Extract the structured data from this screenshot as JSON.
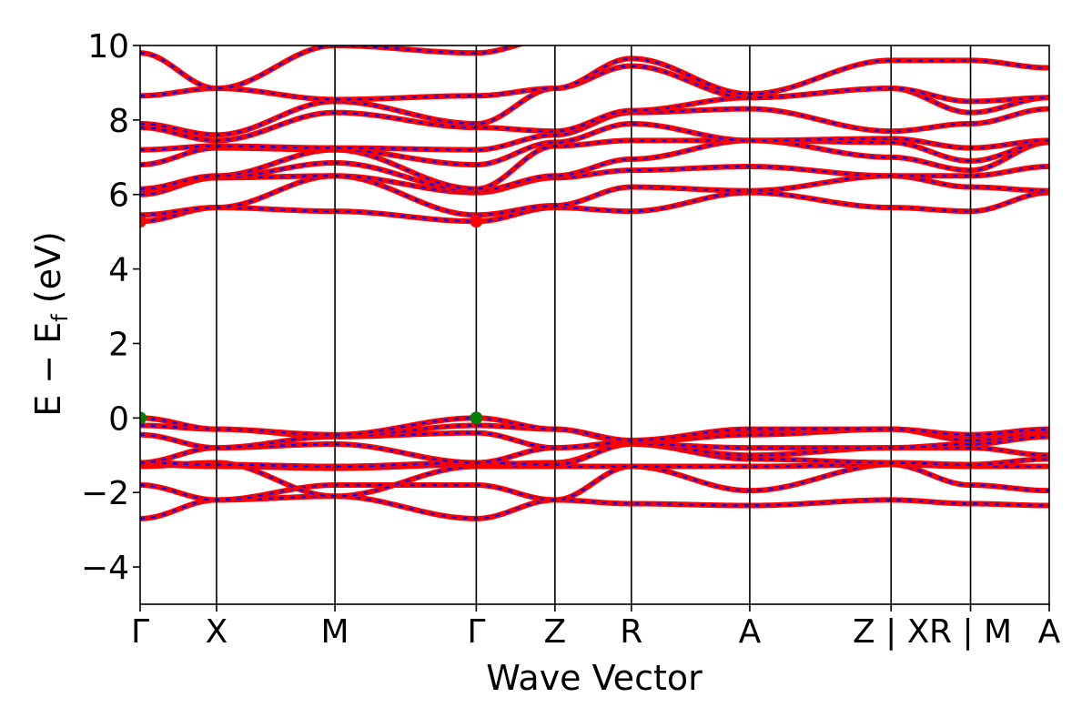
{
  "chart_data": {
    "type": "line",
    "xlabel": "Wave Vector",
    "ylabel": "E − E",
    "ylabel_sub": "f",
    "ylabel_unit": " (eV)",
    "ylim": [
      -5,
      10
    ],
    "yticks": [
      -4,
      -2,
      0,
      2,
      4,
      6,
      8,
      10
    ],
    "ytick_labels": [
      "−4",
      "−2",
      "0",
      "2",
      "4",
      "6",
      "8",
      "10"
    ],
    "xlim": [
      0,
      11.9
    ],
    "kpoints": [
      {
        "label": "Γ",
        "x": 0.0
      },
      {
        "label": "X",
        "x": 1.0
      },
      {
        "label": "M",
        "x": 2.55
      },
      {
        "label": "Γ",
        "x": 4.4
      },
      {
        "label": "Z",
        "x": 5.43
      },
      {
        "label": "R",
        "x": 6.43
      },
      {
        "label": "A",
        "x": 7.98
      },
      {
        "label": "Z | X",
        "x": 9.83
      },
      {
        "label": "R | M",
        "x": 10.87
      },
      {
        "label": "A",
        "x": 11.9
      }
    ],
    "grid": false,
    "colors": {
      "band_main": "#ff0000",
      "band_dash": "#0000ff",
      "vbm_marker": "#008000",
      "cbm_marker": "#ff0000"
    },
    "markers": [
      {
        "name": "VBM",
        "x": 0.0,
        "y": 0.0,
        "color": "#008000"
      },
      {
        "name": "VBM",
        "x": 4.4,
        "y": 0.0,
        "color": "#008000"
      },
      {
        "name": "CBM",
        "x": 0.0,
        "y": 5.28,
        "color": "#ff0000"
      },
      {
        "name": "CBM",
        "x": 4.4,
        "y": 5.28,
        "color": "#ff0000"
      }
    ],
    "bands": [
      [
        -2.7,
        -2.2,
        -2.1,
        -2.7,
        -2.2,
        -2.3,
        -2.35,
        -2.2,
        -2.3,
        -2.35
      ],
      [
        -1.8,
        -2.2,
        -1.8,
        -1.8,
        -2.2,
        -1.3,
        -1.95,
        -1.25,
        -1.8,
        -1.95
      ],
      [
        -1.3,
        -1.2,
        -2.1,
        -1.3,
        -1.3,
        -1.3,
        -1.3,
        -1.25,
        -1.3,
        -1.3
      ],
      [
        -1.25,
        -1.3,
        -1.35,
        -1.25,
        -1.2,
        -0.7,
        -1.1,
        -1.2,
        -1.25,
        -1.1
      ],
      [
        -1.2,
        -1.25,
        -1.3,
        -1.2,
        -1.25,
        -0.7,
        -1.0,
        -0.8,
        -0.8,
        -1.0
      ],
      [
        -1.2,
        -0.8,
        -0.7,
        -1.2,
        -0.8,
        -0.7,
        -0.8,
        -0.8,
        -0.7,
        -0.5
      ],
      [
        -0.45,
        -0.8,
        -0.5,
        -0.4,
        -0.8,
        -0.65,
        -0.45,
        -0.3,
        -0.6,
        -0.4
      ],
      [
        -0.2,
        -0.3,
        -0.5,
        -0.2,
        -0.3,
        -0.65,
        -0.35,
        -0.3,
        -0.5,
        -0.35
      ],
      [
        0.0,
        -0.3,
        -0.45,
        0.0,
        -0.3,
        -0.6,
        -0.3,
        -0.3,
        -0.45,
        -0.3
      ],
      [
        5.28,
        5.65,
        5.55,
        5.28,
        5.65,
        5.55,
        6.05,
        5.65,
        5.55,
        6.05
      ],
      [
        5.45,
        5.65,
        6.5,
        5.45,
        5.7,
        6.2,
        6.1,
        6.5,
        6.2,
        6.1
      ],
      [
        6.0,
        6.45,
        6.5,
        6.05,
        6.45,
        6.65,
        6.75,
        6.5,
        6.5,
        6.75
      ],
      [
        6.1,
        6.45,
        6.85,
        6.1,
        6.5,
        6.95,
        7.45,
        7.0,
        6.65,
        7.4
      ],
      [
        6.15,
        6.5,
        7.2,
        6.15,
        7.3,
        7.45,
        7.45,
        7.4,
        6.9,
        7.4
      ],
      [
        6.8,
        7.25,
        7.2,
        6.8,
        7.4,
        7.9,
        7.45,
        7.5,
        7.25,
        7.45
      ],
      [
        7.2,
        7.3,
        7.25,
        7.2,
        7.6,
        8.2,
        8.3,
        7.7,
        7.9,
        8.3
      ],
      [
        7.8,
        7.45,
        8.2,
        7.8,
        7.7,
        8.25,
        8.6,
        8.85,
        8.2,
        8.6
      ],
      [
        7.9,
        7.6,
        8.5,
        7.9,
        8.85,
        9.45,
        8.6,
        8.85,
        8.5,
        8.6
      ],
      [
        8.65,
        8.85,
        8.55,
        8.65,
        8.85,
        9.65,
        8.7,
        9.6,
        9.6,
        9.4
      ],
      [
        9.8,
        8.85,
        10.0,
        9.8,
        10.2,
        10.2,
        10.3,
        10.3,
        10.3,
        10.3
      ]
    ]
  }
}
